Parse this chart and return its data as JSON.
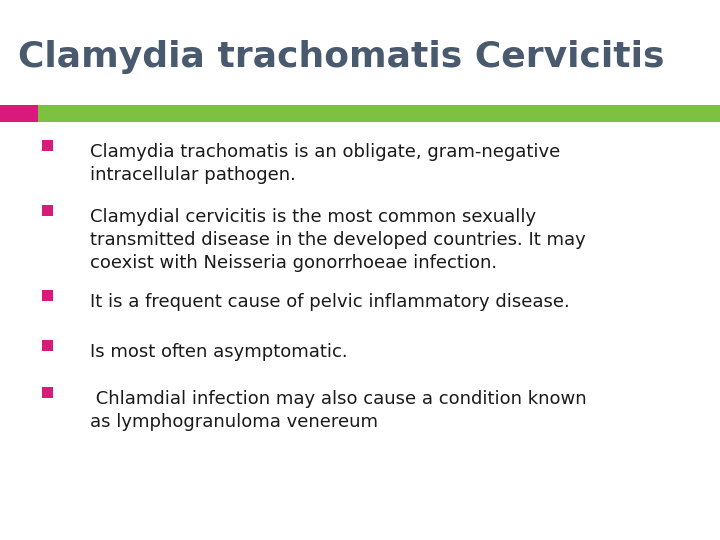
{
  "title": "Clamydia trachomatis Cervicitis",
  "title_color": "#4a5a6e",
  "title_fontsize": 26,
  "title_fontweight": "bold",
  "bg_color": "#ffffff",
  "bar_pink_color": "#d81b7a",
  "bar_green_color": "#7dc142",
  "text_color": "#1a1a1a",
  "bullet_color": "#d81b7a",
  "bullet_points": [
    "Clamydia trachomatis is an obligate, gram-negative\nintracellular pathogen.",
    "Clamydial cervicitis is the most common sexually\ntransmitted disease in the developed countries. It may\ncoexist with Neisseria gonorrhoeae infection.",
    "It is a frequent cause of pelvic inflammatory disease.",
    "Is most often asymptomatic.",
    " Chlamdial infection may also cause a condition known\nas lymphogranuloma venereum"
  ],
  "text_fontsize": 13
}
